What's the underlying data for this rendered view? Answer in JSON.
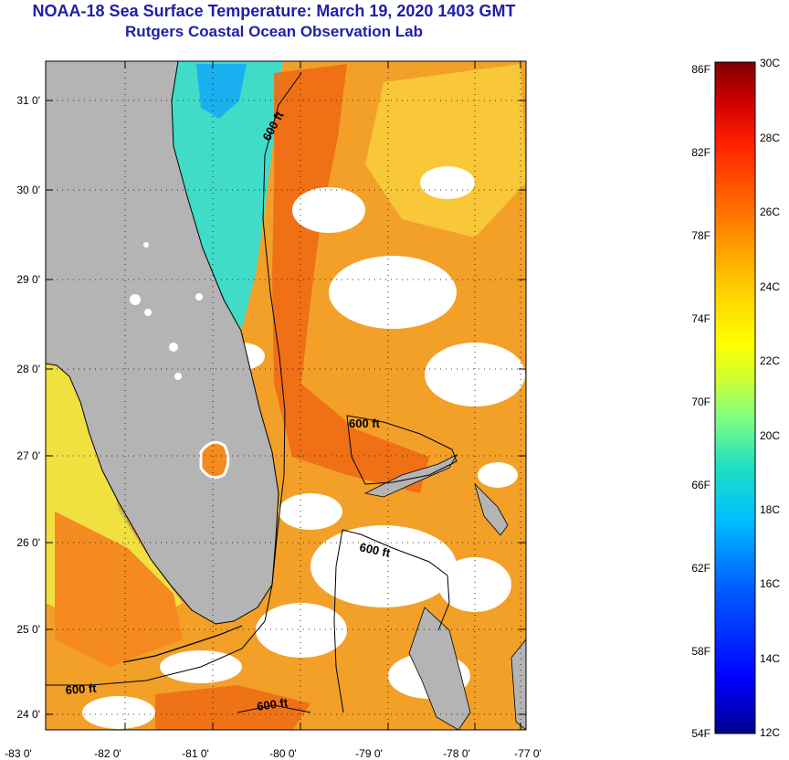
{
  "title": {
    "line1": "NOAA-18 Sea Surface Temperature:  March 19, 2020 1403 GMT",
    "line2": "Rutgers Coastal Ocean Observation Lab"
  },
  "map": {
    "lat_labels": [
      "31 0'",
      "30 0'",
      "29 0'",
      "28 0'",
      "27 0'",
      "26 0'",
      "25 0'",
      "24 0'"
    ],
    "lon_labels": [
      "-83 0'",
      "-82 0'",
      "-81 0'",
      "-80 0'",
      "-79 0'",
      "-78 0'",
      "-77 0'"
    ],
    "isobath_labels": [
      "600 ft",
      "600 ft",
      "600 ft",
      "600 ft",
      "600 ft"
    ],
    "land_color": "#b4b4b4"
  },
  "colorbar": {
    "fahrenheit": [
      "86F",
      "82F",
      "78F",
      "74F",
      "70F",
      "66F",
      "62F",
      "58F",
      "54F"
    ],
    "celsius": [
      "30C",
      "28C",
      "26C",
      "24C",
      "22C",
      "20C",
      "18C",
      "16C",
      "14C",
      "12C"
    ],
    "colors": [
      "#00008f",
      "#0000ff",
      "#0060ff",
      "#00c0ff",
      "#20e0c0",
      "#80ff80",
      "#d0ff30",
      "#ffff00",
      "#ffd000",
      "#ffa000",
      "#ff6000",
      "#ff2000",
      "#d00000",
      "#800000"
    ]
  }
}
